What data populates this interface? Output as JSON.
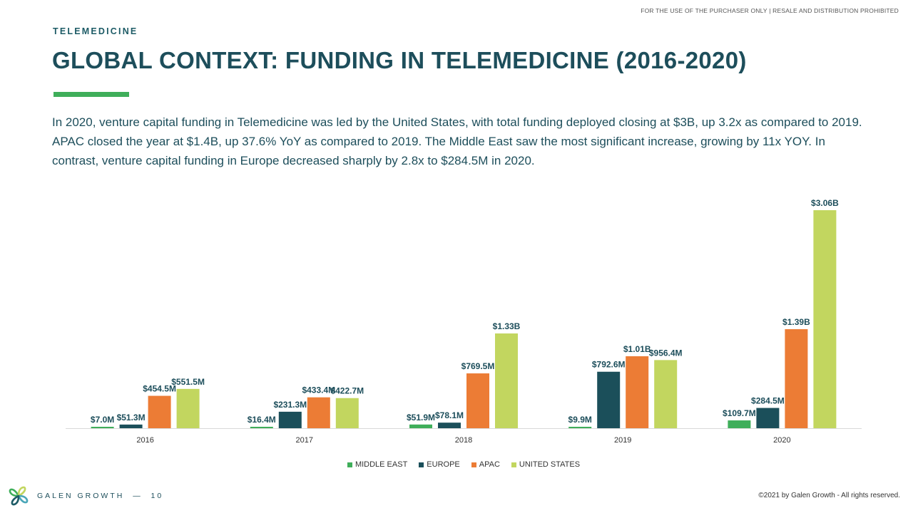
{
  "header": {
    "disclaimer": "FOR THE USE OF THE PURCHASER ONLY | RESALE AND DISTRIBUTION PROHIBITED",
    "section": "TELEMEDICINE",
    "title": "GLOBAL CONTEXT: FUNDING IN TELEMEDICINE (2016-2020)"
  },
  "summary": "In 2020, venture capital funding in Telemedicine was led by the United States, with total funding deployed closing at $3B, up 3.2x as compared to 2019. APAC closed the year at $1.4B, up 37.6% YoY as compared to 2019. The Middle East saw the most significant increase, growing by 11x YOY. In contrast, venture capital funding in Europe decreased sharply by 2.8x to $284.5M in 2020.",
  "chart_data": {
    "type": "bar",
    "categories": [
      "2016",
      "2017",
      "2018",
      "2019",
      "2020"
    ],
    "unit": "USD millions",
    "ylim": [
      0,
      3060
    ],
    "grid": false,
    "legend_position": "bottom",
    "series": [
      {
        "name": "MIDDLE EAST",
        "color": "#3fae5a",
        "values": [
          7.0,
          16.4,
          51.9,
          9.9,
          109.7
        ],
        "labels": [
          "$7.0M",
          "$16.4M",
          "$51.9M",
          "$9.9M",
          "$109.7M"
        ]
      },
      {
        "name": "EUROPE",
        "color": "#1b4f5a",
        "values": [
          51.3,
          231.3,
          78.1,
          792.6,
          284.5
        ],
        "labels": [
          "$51.3M",
          "$231.3M",
          "$78.1M",
          "$792.6M",
          "$284.5M"
        ]
      },
      {
        "name": "APAC",
        "color": "#ec7c35",
        "values": [
          454.5,
          433.4,
          769.5,
          1010,
          1390
        ],
        "labels": [
          "$454.5M",
          "$433.4M",
          "$769.5M",
          "$1.01B",
          "$1.39B"
        ]
      },
      {
        "name": "UNITED STATES",
        "color": "#c2d65f",
        "values": [
          551.5,
          422.7,
          1330,
          956.4,
          3060
        ],
        "labels": [
          "$551.5M",
          "$422.7M",
          "$1.33B",
          "$956.4M",
          "$3.06B"
        ]
      }
    ]
  },
  "footer": {
    "brand": "GALEN GROWTH",
    "separator": "—",
    "page_number": "10",
    "copyright": "©2021 by Galen Growth  - All rights reserved."
  }
}
